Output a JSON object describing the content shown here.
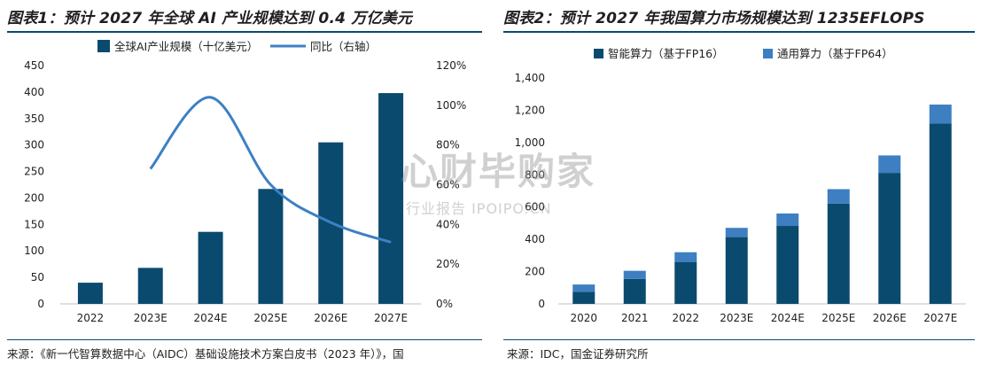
{
  "titles": {
    "left": "图表1：预计 2027 年全球 AI 产业规模达到 0.4 万亿美元",
    "right": "图表2：预计 2027 年我国算力市场规模达到 1235EFLOPS"
  },
  "sources": {
    "left": "来源：《新一代智算数据中心（AIDC）基础设施技术方案白皮书（2023 年）》，国",
    "right": "来源：IDC，国金证券研究所"
  },
  "watermark": {
    "main": "心财毕购家",
    "sub": "行业报告 IPOIPO.CN"
  },
  "colors": {
    "bar_dark": "#0b4a6f",
    "line_blue": "#3d80c4",
    "bar_light": "#3d7fc1",
    "text": "#1f1f1f"
  },
  "chart_data": [
    {
      "type": "bar",
      "title": "",
      "categories": [
        "2022",
        "2023E",
        "2024E",
        "2025E",
        "2026E",
        "2027E"
      ],
      "series": [
        {
          "name": "全球AI产业规模（十亿美元）",
          "type": "bar",
          "axis": "left",
          "values": [
            40,
            68,
            136,
            217,
            305,
            398
          ]
        },
        {
          "name": "同比（右轴）",
          "type": "line",
          "axis": "right",
          "values": [
            null,
            68,
            104,
            60,
            41,
            31
          ]
        }
      ],
      "ylim_left": [
        0,
        450
      ],
      "yticks_left": [
        "0",
        "50",
        "100",
        "150",
        "200",
        "250",
        "300",
        "350",
        "400",
        "450"
      ],
      "ylim_right": [
        0,
        120
      ],
      "yticks_right": [
        "0%",
        "20%",
        "40%",
        "60%",
        "80%",
        "100%",
        "120%"
      ],
      "legend": "top"
    },
    {
      "type": "bar",
      "stacked": true,
      "title": "",
      "categories": [
        "2020",
        "2021",
        "2022",
        "2023E",
        "2024E",
        "2025E",
        "2026E",
        "2027E"
      ],
      "series": [
        {
          "name": "智能算力（基于FP16）",
          "values": [
            75,
            155,
            260,
            414,
            483,
            621,
            812,
            1117
          ]
        },
        {
          "name": "通用算力（基于FP64）",
          "values": [
            45,
            50,
            60,
            57,
            77,
            90,
            108,
            118
          ]
        }
      ],
      "ylim": [
        0,
        1400
      ],
      "yticks": [
        "0",
        "200",
        "400",
        "600",
        "800",
        "1,000",
        "1,200",
        "1,400"
      ],
      "legend": "top"
    }
  ]
}
